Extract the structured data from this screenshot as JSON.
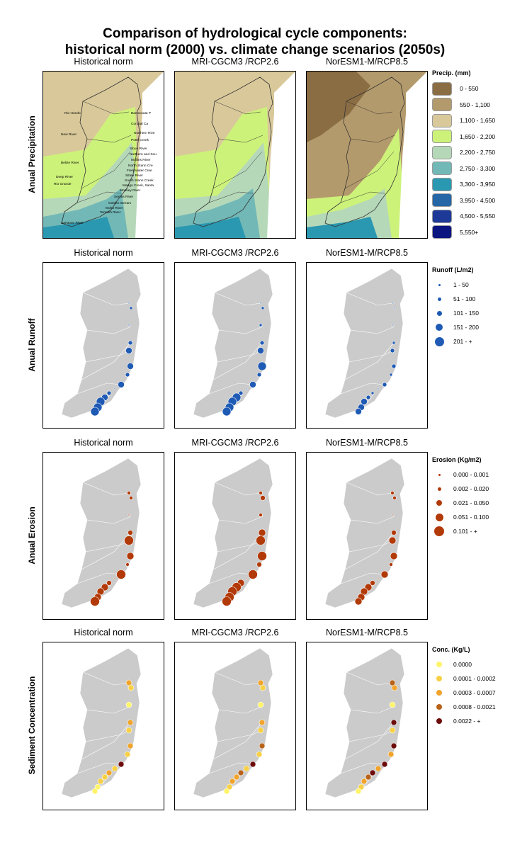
{
  "title_line1": "Comparison of hydrological cycle components:",
  "title_line2": "historical norm (2000) vs. climate change scenarios (2050s)",
  "columns": [
    "Historical norm",
    "MRI-CGCM3 /RCP2.6",
    "NorESM1-M/RCP8.5"
  ],
  "rows": [
    "Anual Precipitation",
    "Anual Runoff",
    "Anual Erosion",
    "Sediment Concentration"
  ],
  "rivers": [
    "Barracouta P",
    "Corozal Ca",
    "Northern Rive",
    "Potts Creek",
    "Sibun River",
    "Northern and Sou",
    "Mullins River",
    "North Stann Cre",
    "Freshwater Cree",
    "Sittee River",
    "South Stann Creek",
    "Mango Creek, Santa",
    "Monkey River",
    "Sennis River",
    "Golden Stream",
    "Moho River",
    "Temash River",
    "Rio Hondo",
    "New River",
    "Belize River",
    "Deep River",
    "Rio Grande",
    "Sarstoon River"
  ],
  "precip_legend": {
    "title": "Precip. (mm)",
    "items": [
      {
        "label": "0 - 550",
        "color": "#8b6d44"
      },
      {
        "label": "550 - 1,100",
        "color": "#b39a6c"
      },
      {
        "label": "1,100 - 1,650",
        "color": "#d9c99a"
      },
      {
        "label": "1,650 - 2,200",
        "color": "#cdf27a"
      },
      {
        "label": "2,200 - 2,750",
        "color": "#b5d8b9"
      },
      {
        "label": "2,750 - 3,300",
        "color": "#72b8b6"
      },
      {
        "label": "3,300 - 3,950",
        "color": "#2a98b0"
      },
      {
        "label": "3,950 - 4,500",
        "color": "#2466a6"
      },
      {
        "label": "4,500 - 5,550",
        "color": "#1d3a98"
      },
      {
        "label": "5,550+",
        "color": "#0a1580"
      }
    ]
  },
  "runoff_legend": {
    "title": "Runoff (L/m2)",
    "color": "#1f5bb5",
    "items": [
      "1 - 50",
      "51 - 100",
      "101 - 150",
      "151 - 200",
      "201 - +"
    ]
  },
  "erosion_legend": {
    "title": "Erosion (Kg/m2)",
    "color": "#b23a08",
    "items": [
      "0.000 - 0.001",
      "0.002 - 0.020",
      "0.021 - 0.050",
      "0.051 - 0.100",
      "0.101 - +"
    ]
  },
  "conc_legend": {
    "title": "Conc. (Kg/L)",
    "colors": [
      "#fff46a",
      "#f7d045",
      "#f0a42c",
      "#b8631a",
      "#6e0c0c"
    ],
    "items": [
      "0.0000",
      "0.0001 - 0.0002",
      "0.0003 - 0.0007",
      "0.0008 - 0.0021",
      "0.0022 - +"
    ]
  },
  "runoff_classes": [
    [
      0,
      1,
      0,
      2,
      3,
      3,
      2,
      3,
      0,
      2,
      3,
      4,
      4,
      4
    ],
    [
      0,
      1,
      1,
      2,
      3,
      4,
      2,
      3,
      0,
      2,
      4,
      4,
      4,
      4
    ],
    [
      0,
      0,
      0,
      1,
      2,
      2,
      1,
      2,
      0,
      1,
      2,
      3,
      3,
      3
    ]
  ],
  "erosion_classes": [
    [
      1,
      1,
      0,
      2,
      4,
      3,
      1,
      4,
      0,
      2,
      3,
      3,
      3,
      4
    ],
    [
      1,
      2,
      1,
      3,
      4,
      4,
      2,
      4,
      0,
      3,
      4,
      4,
      4,
      4
    ],
    [
      1,
      1,
      0,
      2,
      3,
      3,
      1,
      3,
      0,
      2,
      3,
      3,
      3,
      3
    ]
  ],
  "conc_classes": [
    [
      2,
      1,
      0,
      2,
      1,
      2,
      1,
      4,
      1,
      2,
      1,
      1,
      0,
      0
    ],
    [
      2,
      1,
      0,
      2,
      1,
      3,
      1,
      4,
      1,
      3,
      2,
      2,
      1,
      0
    ],
    [
      3,
      2,
      0,
      4,
      1,
      4,
      2,
      4,
      2,
      4,
      3,
      2,
      1,
      0
    ]
  ]
}
